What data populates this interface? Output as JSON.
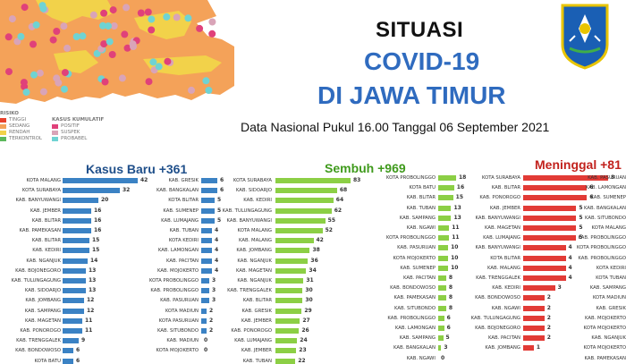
{
  "header": {
    "title_line1": "SITUASI",
    "title_line2": "COVID-19",
    "title_line3": "DI JAWA TIMUR",
    "subtitle": "Data Nasional Pukul 16.00 Tanggal 06 September 2021"
  },
  "legend": {
    "risk_title": "RISIKO",
    "risk_items": [
      "TINGGI",
      "SEDANG",
      "RENDAH",
      "TERKONTROL"
    ],
    "risk_colors": [
      "#e8412c",
      "#f4a259",
      "#f2d24a",
      "#5cb85c"
    ],
    "cum_title": "KASUS KUMULATIF",
    "cum_items": [
      "POSITIF",
      "SUSPEK",
      "PROBABEL"
    ],
    "cum_colors": [
      "#e0417a",
      "#d9a4b8",
      "#6fd3d3"
    ]
  },
  "map": {
    "colors": {
      "orange": "#f4a259",
      "yellow": "#f2d24a",
      "sea": "#ffffff"
    }
  },
  "charts": {
    "kasus_baru": {
      "heading": "Kasus Baru +361",
      "color": "#3b82c4",
      "heading_color": "#1f4f8a",
      "left": [
        [
          "KOTA MALANG",
          42
        ],
        [
          "KOTA SURABAYA",
          32
        ],
        [
          "KAB. BANYUWANGI",
          20
        ],
        [
          "KAB. JEMBER",
          16
        ],
        [
          "KAB. BLITAR",
          16
        ],
        [
          "KAB. PAMEKASAN",
          16
        ],
        [
          "KAB. BLITAR",
          15
        ],
        [
          "KAB. KEDIRI",
          15
        ],
        [
          "KAB. NGANJUK",
          14
        ],
        [
          "KAB. BOJONEGORO",
          13
        ],
        [
          "KAB. TULUNGAGUNG",
          13
        ],
        [
          "KAB. SIDOARJO",
          13
        ],
        [
          "KAB. JOMBANG",
          12
        ],
        [
          "KAB. SAMPANG",
          12
        ],
        [
          "KAB. MAGETAN",
          11
        ],
        [
          "KAB. PONOROGO",
          11
        ],
        [
          "KAB. TRENGGALEK",
          9
        ],
        [
          "KAB. BONDOWOSO",
          6
        ],
        [
          "KOTA BATU",
          6
        ]
      ],
      "right": [
        [
          "KAB. GRESIK",
          6
        ],
        [
          "KAB. BANGKALAN",
          6
        ],
        [
          "KOTA BLITAR",
          5
        ],
        [
          "KAB. SUMENEP",
          5
        ],
        [
          "KAB. LUMAJANG",
          5
        ],
        [
          "KAB. TUBAN",
          4
        ],
        [
          "KOTA KEDIRI",
          4
        ],
        [
          "KAB. LAMONGAN",
          4
        ],
        [
          "KAB. PACITAN",
          4
        ],
        [
          "KAB. MOJOKERTO",
          4
        ],
        [
          "KOTA PROBOLINGGO",
          3
        ],
        [
          "KAB. PROBOLINGGO",
          3
        ],
        [
          "KAB. PASURUAN",
          3
        ],
        [
          "KOTA MADIUN",
          2
        ],
        [
          "KOTA PASURUAN",
          2
        ],
        [
          "KAB. SITUBONDO",
          2
        ],
        [
          "KAB. MADIUN",
          0
        ],
        [
          "KOTA MOJOKERTO",
          0
        ]
      ]
    },
    "sembuh": {
      "heading": "Sembuh +969",
      "color": "#8ccf45",
      "heading_color": "#3f9a1c",
      "left": [
        [
          "KOTA SURABAYA",
          83
        ],
        [
          "KAB. SIDOARJO",
          68
        ],
        [
          "KAB. KEDIRI",
          64
        ],
        [
          "KAB. TULUNGAGUNG",
          62
        ],
        [
          "KAB. BANYUWANGI",
          55
        ],
        [
          "KOTA MALANG",
          52
        ],
        [
          "KAB. MALANG",
          42
        ],
        [
          "KAB. JOMBANG",
          38
        ],
        [
          "KAB. NGANJUK",
          36
        ],
        [
          "KAB. MAGETAN",
          34
        ],
        [
          "KAB. NGANJUK",
          31
        ],
        [
          "KAB. TRENGGALEK",
          30
        ],
        [
          "KAB. BLITAR",
          30
        ],
        [
          "KAB. GRESIK",
          29
        ],
        [
          "KAB. JEMBER",
          27
        ],
        [
          "KAB. PONOROGO",
          26
        ],
        [
          "KAB. LUMAJANG",
          24
        ],
        [
          "KAB. JEMBER",
          23
        ],
        [
          "KAB. TUBAN",
          22
        ]
      ],
      "right": [
        [
          "KOTA PROBOLINGGO",
          18
        ],
        [
          "KOTA BATU",
          16
        ],
        [
          "KAB. BLITAR",
          15
        ],
        [
          "KAB. TUBAN",
          13
        ],
        [
          "KAB. SAMPANG",
          13
        ],
        [
          "KAB. NGAWI",
          11
        ],
        [
          "KOTA PROBOLINGGO",
          11
        ],
        [
          "KAB. PASURUAN",
          10
        ],
        [
          "KOTA MOJOKERTO",
          10
        ],
        [
          "KAB. SUMENEP",
          10
        ],
        [
          "KAB. PACITAN",
          8
        ],
        [
          "KAB. BONDOWOSO",
          8
        ],
        [
          "KAB. PAMEKASAN",
          8
        ],
        [
          "KAB. SITUBONDO",
          8
        ],
        [
          "KAB. PROBOLINGGO",
          6
        ],
        [
          "KAB. LAMONGAN",
          6
        ],
        [
          "KAB. SAMPANG",
          5
        ],
        [
          "KAB. BANGKALAN",
          3
        ],
        [
          "KAB. NGAWI",
          0
        ]
      ]
    },
    "meninggal": {
      "heading": "Meninggal +81",
      "color": "#e23b36",
      "heading_color": "#c2221d",
      "left": [
        [
          "KOTA SURABAYA",
          8
        ],
        [
          "KAB. BLITAR",
          6
        ],
        [
          "KAB. PONOROGO",
          6
        ],
        [
          "KAB. JEMBER",
          5
        ],
        [
          "KAB. BANYUWANGI",
          5
        ],
        [
          "KAB. MAGETAN",
          5
        ],
        [
          "KAB. LUMAJANG",
          5
        ],
        [
          "KAB. BANYUWANGI",
          4
        ],
        [
          "KOTA BLITAR",
          4
        ],
        [
          "KAB. MALANG",
          4
        ],
        [
          "KAB. TRENGGALEK",
          4
        ],
        [
          "KAB. KEDIRI",
          3
        ],
        [
          "KAB. BONDOWOSO",
          2
        ],
        [
          "KAB. NGAWI",
          2
        ],
        [
          "KAB. TULUNGAGUNG",
          2
        ],
        [
          "KAB. BOJONEGORO",
          2
        ],
        [
          "KAB. PACITAN",
          2
        ],
        [
          "KAB. JOMBANG",
          1
        ]
      ],
      "right": [
        [
          "KAB. PASURUAN",
          ""
        ],
        [
          "KAB. LAMONGAN",
          ""
        ],
        [
          "KAB. SUMENEP",
          ""
        ],
        [
          "KAB. BANGKALAN",
          ""
        ],
        [
          "KAB. SITUBONDO",
          ""
        ],
        [
          "KOTA MALANG",
          ""
        ],
        [
          "KAB. PROBOLINGGO",
          ""
        ],
        [
          "KOTA PROBOLINGGO",
          ""
        ],
        [
          "KAB. PROBOLINGGO",
          ""
        ],
        [
          "KOTA KEDIRI",
          ""
        ],
        [
          "KOTA TUBAN",
          ""
        ],
        [
          "KAB. SAMPANG",
          ""
        ],
        [
          "KOTA MADIUN",
          ""
        ],
        [
          "KAB. GRESIK",
          ""
        ],
        [
          "KAB. MOJOKERTO",
          ""
        ],
        [
          "KOTA MOJOKERTO",
          ""
        ],
        [
          "KAB. NGANJUK",
          ""
        ],
        [
          "KOTA MOJOKERTO",
          ""
        ],
        [
          "KAB. PAMEKASAN",
          ""
        ]
      ]
    }
  }
}
